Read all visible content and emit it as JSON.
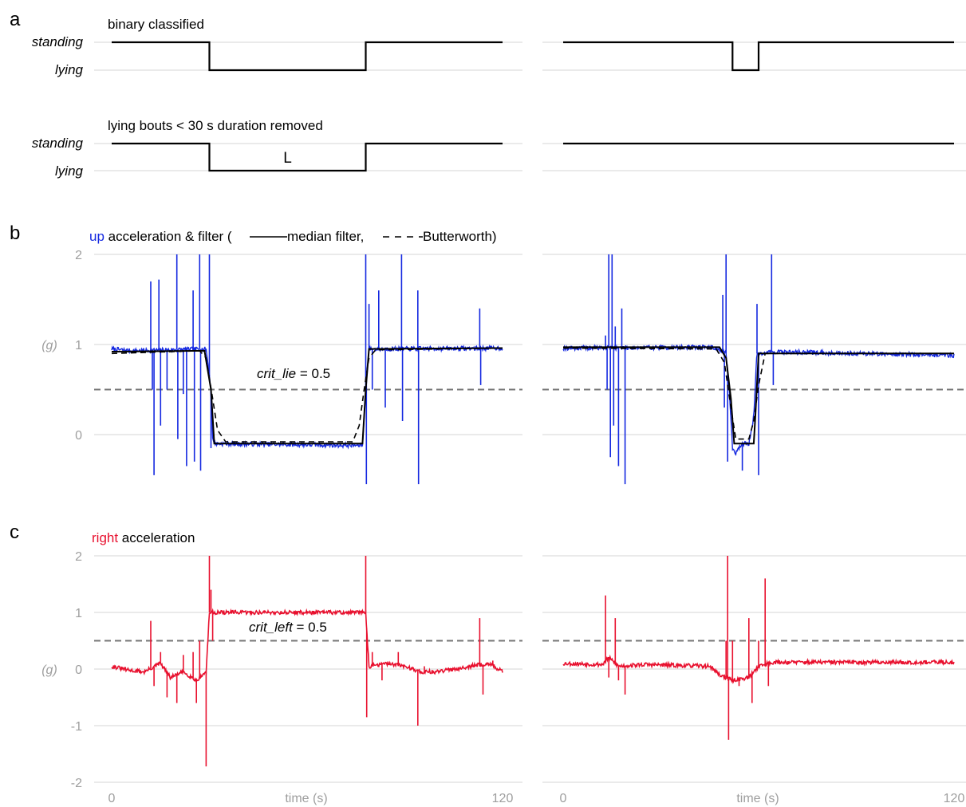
{
  "figure": {
    "panel_a": {
      "letter": "a",
      "title1": "binary classified",
      "title2": "lying bouts < 30 s duration removed",
      "standing_label": "standing",
      "lying_label": "lying",
      "bout_label": "L"
    },
    "panel_b": {
      "letter": "b",
      "title_colored": "up",
      "title_rest": " acceleration & filter (",
      "legend_median": " median filter, ",
      "legend_butter": " Butterworth)",
      "threshold_name": "crit_lie",
      "threshold_rest": " = 0.5",
      "unit": "(g)"
    },
    "panel_c": {
      "letter": "c",
      "title_colored": "right",
      "title_rest": " acceleration",
      "threshold_name": "crit_left",
      "threshold_rest": " = 0.5",
      "unit": "(g)"
    },
    "xaxis": {
      "label": "time (s)",
      "tick_start": "0",
      "tick_end": "120"
    },
    "colors": {
      "up": "#1428e0",
      "right": "#e8102e",
      "classified": "#000000",
      "grid": "#d4d4d4",
      "threshold": "#777777"
    }
  },
  "chart_data": [
    {
      "id": "a-left-top",
      "type": "line",
      "title": "binary classified",
      "x": [
        0,
        30,
        30,
        78,
        78,
        120
      ],
      "values": [
        1,
        1,
        0,
        0,
        1,
        1
      ],
      "categories_y": [
        "lying",
        "standing"
      ],
      "xlim": [
        0,
        120
      ]
    },
    {
      "id": "a-right-top",
      "type": "line",
      "x": [
        0,
        52,
        52,
        60,
        60,
        120
      ],
      "values": [
        1,
        1,
        0,
        0,
        1,
        1
      ],
      "categories_y": [
        "lying",
        "standing"
      ],
      "xlim": [
        0,
        120
      ]
    },
    {
      "id": "a-left-bottom",
      "type": "line",
      "title": "lying bouts < 30 s duration removed",
      "x": [
        0,
        30,
        30,
        78,
        78,
        120
      ],
      "values": [
        1,
        1,
        0,
        0,
        1,
        1
      ],
      "categories_y": [
        "lying",
        "standing"
      ],
      "xlim": [
        0,
        120
      ],
      "annotations": [
        {
          "text": "L",
          "x": 54
        }
      ]
    },
    {
      "id": "a-right-bottom",
      "type": "line",
      "x": [
        0,
        120
      ],
      "values": [
        1,
        1
      ],
      "categories_y": [
        "lying",
        "standing"
      ],
      "xlim": [
        0,
        120
      ]
    },
    {
      "id": "b-left",
      "type": "line",
      "title": "up acceleration & filter",
      "xlim": [
        0,
        120
      ],
      "ylim": [
        -0.6,
        2
      ],
      "yticks": [
        0,
        1,
        2
      ],
      "threshold": 0.5,
      "base": [
        [
          0,
          0.95
        ],
        [
          6,
          0.93
        ],
        [
          29,
          0.95
        ],
        [
          30.5,
          0.5
        ],
        [
          31,
          -0.05
        ],
        [
          32,
          -0.1
        ],
        [
          77,
          -0.12
        ],
        [
          78,
          0.5
        ],
        [
          79,
          0.95
        ],
        [
          120,
          0.96
        ]
      ],
      "spikes": [
        [
          12,
          1.7
        ],
        [
          12.5,
          0.5
        ],
        [
          13,
          -0.45
        ],
        [
          14.5,
          1.72
        ],
        [
          15,
          0.1
        ],
        [
          17,
          0.5
        ],
        [
          20,
          2.0
        ],
        [
          20.3,
          -0.05
        ],
        [
          22,
          0.45
        ],
        [
          23,
          -0.35
        ],
        [
          25,
          1.6
        ],
        [
          25.4,
          -0.3
        ],
        [
          27,
          2.0
        ],
        [
          27.3,
          -0.4
        ],
        [
          30,
          2.0
        ],
        [
          30.5,
          -0.15
        ],
        [
          78,
          2.0
        ],
        [
          78.2,
          -0.55
        ],
        [
          79,
          1.45
        ],
        [
          80,
          0.5
        ],
        [
          82,
          1.6
        ],
        [
          84,
          0.3
        ],
        [
          89,
          2.0
        ],
        [
          89.3,
          0.15
        ],
        [
          94,
          1.6
        ],
        [
          94.2,
          -0.55
        ],
        [
          113,
          1.4
        ],
        [
          113.3,
          0.55
        ]
      ],
      "series": [
        {
          "name": "median filter",
          "x": [
            0,
            28.5,
            30.5,
            31.5,
            77,
            78,
            79,
            120
          ],
          "values": [
            0.92,
            0.93,
            0.5,
            -0.1,
            -0.1,
            0.5,
            0.95,
            0.96
          ]
        },
        {
          "name": "Butterworth",
          "x": [
            0,
            27,
            29,
            31,
            32.5,
            35,
            74,
            76,
            77.5,
            79,
            81,
            120
          ],
          "values": [
            0.9,
            0.93,
            0.85,
            0.4,
            0.05,
            -0.08,
            -0.08,
            0.1,
            0.5,
            0.85,
            0.94,
            0.96
          ]
        }
      ]
    },
    {
      "id": "b-right",
      "type": "line",
      "xlim": [
        0,
        120
      ],
      "ylim": [
        -0.6,
        2
      ],
      "yticks": [
        0,
        1,
        2
      ],
      "threshold": 0.5,
      "base": [
        [
          0,
          0.96
        ],
        [
          46,
          0.97
        ],
        [
          50,
          0.9
        ],
        [
          51,
          0.5
        ],
        [
          52,
          -0.15
        ],
        [
          53,
          -0.2
        ],
        [
          55,
          -0.1
        ],
        [
          57,
          -0.1
        ],
        [
          58.5,
          0.2
        ],
        [
          59.5,
          0.9
        ],
        [
          64,
          0.92
        ],
        [
          120,
          0.88
        ]
      ],
      "spikes": [
        [
          13,
          1.1
        ],
        [
          13.5,
          0.5
        ],
        [
          14,
          2.0
        ],
        [
          14.5,
          -0.25
        ],
        [
          15,
          2.0
        ],
        [
          15.5,
          0.1
        ],
        [
          16,
          1.2
        ],
        [
          17,
          -0.35
        ],
        [
          18,
          1.4
        ],
        [
          19,
          -0.55
        ],
        [
          49,
          1.55
        ],
        [
          49.5,
          0.3
        ],
        [
          50,
          2.0
        ],
        [
          50.5,
          -0.3
        ],
        [
          55,
          -0.4
        ],
        [
          59.5,
          1.45
        ],
        [
          60,
          -0.45
        ],
        [
          64,
          2.0
        ],
        [
          64.5,
          0.55
        ]
      ],
      "series": [
        {
          "name": "median filter",
          "x": [
            0,
            48,
            50,
            51.5,
            52.5,
            58.5,
            59,
            60,
            120
          ],
          "values": [
            0.97,
            0.97,
            0.85,
            0.4,
            -0.1,
            -0.1,
            0.2,
            0.9,
            0.9
          ]
        },
        {
          "name": "Butterworth",
          "x": [
            0,
            47,
            49.5,
            51.5,
            53,
            57,
            58.5,
            60,
            62,
            120
          ],
          "values": [
            0.96,
            0.95,
            0.8,
            0.3,
            -0.05,
            -0.05,
            0.15,
            0.55,
            0.9,
            0.9
          ]
        }
      ]
    },
    {
      "id": "c-left",
      "type": "line",
      "title": "right acceleration",
      "xlim": [
        0,
        120
      ],
      "ylim": [
        -2,
        2
      ],
      "yticks": [
        -2,
        -1,
        0,
        1,
        2
      ],
      "threshold": 0.5,
      "base": [
        [
          0,
          0.05
        ],
        [
          5,
          -0.02
        ],
        [
          10,
          -0.05
        ],
        [
          15,
          0.1
        ],
        [
          18,
          -0.15
        ],
        [
          22,
          -0.05
        ],
        [
          26,
          -0.2
        ],
        [
          29,
          -0.05
        ],
        [
          30,
          1.0
        ],
        [
          78,
          1.0
        ],
        [
          79,
          0.05
        ],
        [
          85,
          0.1
        ],
        [
          90,
          0.05
        ],
        [
          95,
          -0.05
        ],
        [
          100,
          -0.05
        ],
        [
          110,
          0.05
        ],
        [
          116,
          0.1
        ],
        [
          120,
          -0.05
        ]
      ],
      "spikes": [
        [
          12,
          0.85
        ],
        [
          13,
          -0.3
        ],
        [
          15,
          0.3
        ],
        [
          17,
          -0.5
        ],
        [
          20,
          -0.6
        ],
        [
          22,
          0.25
        ],
        [
          25,
          0.3
        ],
        [
          26,
          -0.6
        ],
        [
          27,
          0.5
        ],
        [
          29,
          -1.72
        ],
        [
          30,
          2.0
        ],
        [
          30.5,
          1.4
        ],
        [
          31,
          0.5
        ],
        [
          78,
          2.0
        ],
        [
          78.3,
          -0.85
        ],
        [
          80,
          0.3
        ],
        [
          83,
          -0.2
        ],
        [
          88,
          0.3
        ],
        [
          94,
          -1.0
        ],
        [
          96,
          0.05
        ],
        [
          113,
          0.9
        ],
        [
          114,
          -0.45
        ],
        [
          117,
          0.15
        ]
      ]
    },
    {
      "id": "c-right",
      "type": "line",
      "xlim": [
        0,
        120
      ],
      "ylim": [
        -2,
        2
      ],
      "yticks": [
        -2,
        -1,
        0,
        1,
        2
      ],
      "threshold": 0.5,
      "base": [
        [
          0,
          0.1
        ],
        [
          12,
          0.08
        ],
        [
          14,
          0.2
        ],
        [
          17,
          0.05
        ],
        [
          25,
          0.08
        ],
        [
          45,
          0.05
        ],
        [
          48,
          -0.1
        ],
        [
          52,
          -0.2
        ],
        [
          57,
          -0.15
        ],
        [
          60,
          0.05
        ],
        [
          64,
          0.12
        ],
        [
          120,
          0.12
        ]
      ],
      "spikes": [
        [
          13,
          1.3
        ],
        [
          14,
          -0.15
        ],
        [
          16,
          0.9
        ],
        [
          17,
          -0.2
        ],
        [
          19,
          -0.45
        ],
        [
          50,
          0.5
        ],
        [
          50.5,
          2.0
        ],
        [
          50.8,
          -1.25
        ],
        [
          52,
          0.5
        ],
        [
          54,
          -0.3
        ],
        [
          57,
          0.9
        ],
        [
          58,
          -0.6
        ],
        [
          60,
          0.5
        ],
        [
          62,
          1.6
        ],
        [
          63,
          -0.3
        ],
        [
          64.5,
          0.12
        ]
      ]
    }
  ]
}
